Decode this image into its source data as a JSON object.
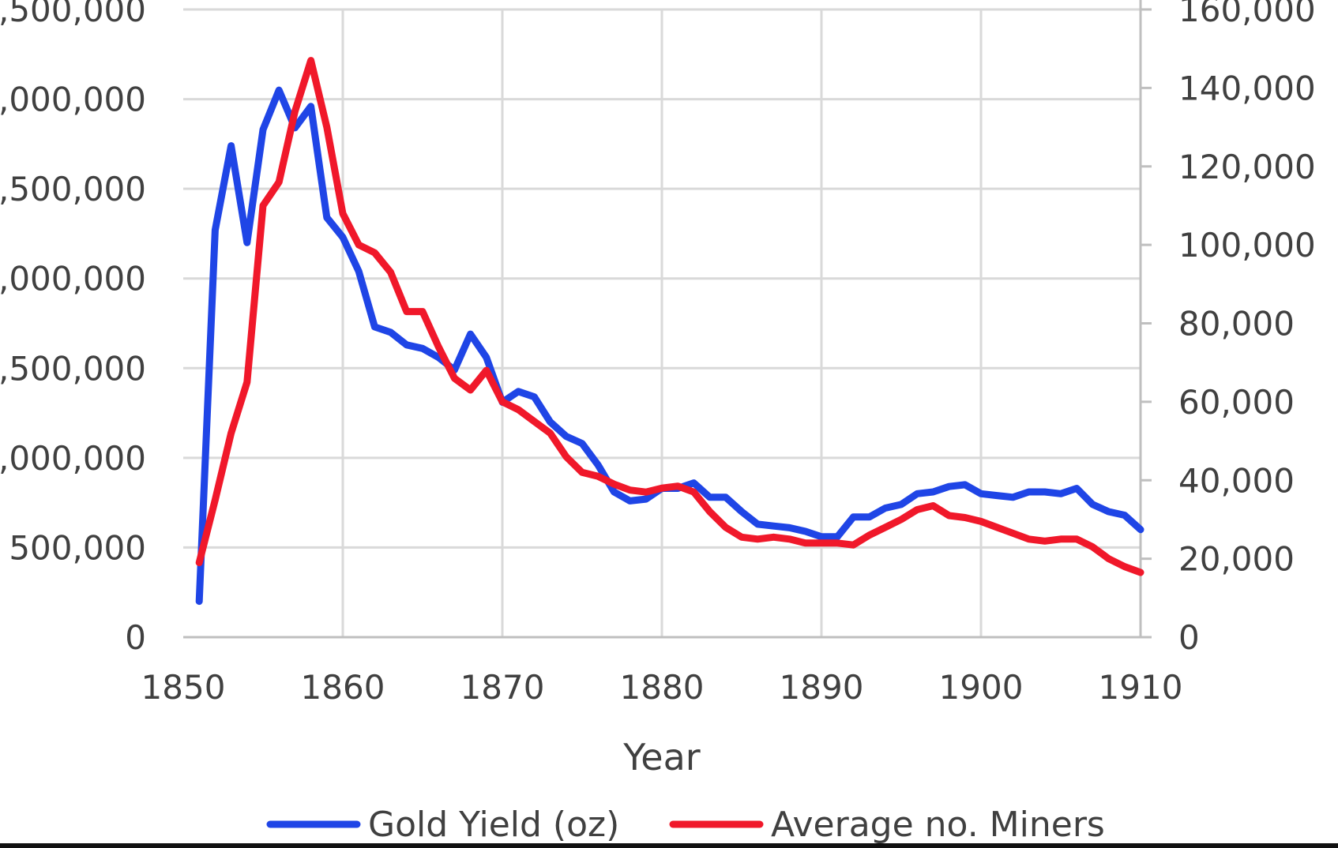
{
  "chart_data": {
    "type": "line",
    "title": "",
    "xlabel": "Year",
    "ylabel_left": "",
    "ylabel_right": "",
    "xlim": [
      1850,
      1910
    ],
    "x_ticks": [
      "1850",
      "1860",
      "1870",
      "1880",
      "1890",
      "1900",
      "1910"
    ],
    "y_left_lim": [
      0,
      3500000
    ],
    "y_left_ticks": [
      "0",
      "500,000",
      ",000,000",
      ",500,000",
      ",000,000",
      ",500,000",
      ",000,000",
      ",500,000"
    ],
    "y_right_lim": [
      0,
      160000
    ],
    "y_right_ticks": [
      "0",
      "20,000",
      "40,000",
      "60,000",
      "80,000",
      "100,000",
      "120,000",
      "140,000",
      "160,000"
    ],
    "grid": true,
    "legend_position": "bottom-center",
    "colors": {
      "gold_yield": "#1f45e6",
      "miners": "#f0182a",
      "grid": "#d9d9d9",
      "text": "#404040"
    },
    "series": [
      {
        "name": "Gold Yield (oz)",
        "axis": "left",
        "color": "#1f45e6",
        "x": [
          1851,
          1852,
          1853,
          1854,
          1855,
          1856,
          1857,
          1858,
          1859,
          1860,
          1861,
          1862,
          1863,
          1864,
          1865,
          1866,
          1867,
          1868,
          1869,
          1870,
          1871,
          1872,
          1873,
          1874,
          1875,
          1876,
          1877,
          1878,
          1879,
          1880,
          1881,
          1882,
          1883,
          1884,
          1885,
          1886,
          1887,
          1888,
          1889,
          1890,
          1891,
          1892,
          1893,
          1894,
          1895,
          1896,
          1897,
          1898,
          1899,
          1900,
          1901,
          1902,
          1903,
          1904,
          1905,
          1906,
          1907,
          1908,
          1909,
          1910
        ],
        "values": [
          200000,
          2270000,
          2740000,
          2200000,
          2830000,
          3050000,
          2840000,
          2960000,
          2340000,
          2230000,
          2040000,
          1730000,
          1700000,
          1630000,
          1610000,
          1560000,
          1490000,
          1690000,
          1560000,
          1310000,
          1370000,
          1340000,
          1200000,
          1120000,
          1080000,
          960000,
          810000,
          760000,
          770000,
          830000,
          830000,
          860000,
          780000,
          780000,
          700000,
          630000,
          620000,
          610000,
          590000,
          560000,
          560000,
          670000,
          670000,
          720000,
          740000,
          800000,
          810000,
          840000,
          850000,
          800000,
          790000,
          780000,
          810000,
          810000,
          800000,
          830000,
          740000,
          700000,
          680000,
          600000
        ]
      },
      {
        "name": "Average no. Miners",
        "axis": "right",
        "color": "#f0182a",
        "x": [
          1851,
          1852,
          1853,
          1854,
          1855,
          1856,
          1857,
          1858,
          1859,
          1860,
          1861,
          1862,
          1863,
          1864,
          1865,
          1866,
          1867,
          1868,
          1869,
          1870,
          1871,
          1872,
          1873,
          1874,
          1875,
          1876,
          1877,
          1878,
          1879,
          1880,
          1881,
          1882,
          1883,
          1884,
          1885,
          1886,
          1887,
          1888,
          1889,
          1890,
          1891,
          1892,
          1893,
          1894,
          1895,
          1896,
          1897,
          1898,
          1899,
          1900,
          1901,
          1902,
          1903,
          1904,
          1905,
          1906,
          1907,
          1908,
          1909,
          1910
        ],
        "values": [
          19000,
          35000,
          52000,
          65000,
          110000,
          116000,
          134000,
          147000,
          130000,
          108000,
          100000,
          98000,
          93000,
          83000,
          83000,
          74000,
          66000,
          63000,
          68000,
          60000,
          58000,
          55000,
          52000,
          46000,
          42000,
          41000,
          39000,
          37500,
          37000,
          38000,
          38500,
          37000,
          32000,
          28000,
          25500,
          25000,
          25500,
          25000,
          24000,
          24000,
          24000,
          23500,
          26000,
          28000,
          30000,
          32500,
          33500,
          31000,
          30500,
          29500,
          28000,
          26500,
          25000,
          24500,
          25000,
          25000,
          23000,
          20000,
          18000,
          16500
        ]
      }
    ]
  }
}
